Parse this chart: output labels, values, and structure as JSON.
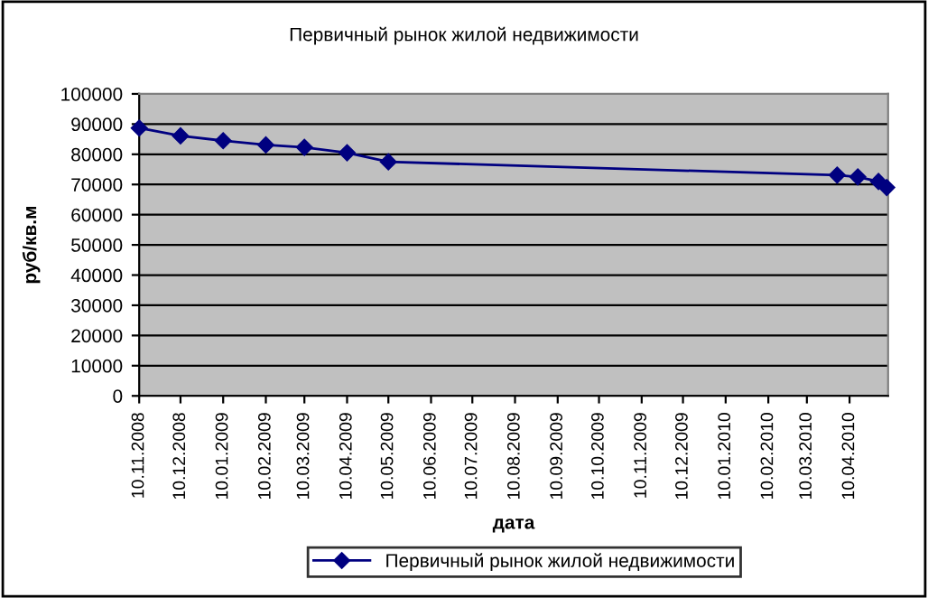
{
  "chart_data": {
    "type": "line",
    "title": "Первичный рынок жилой недвижимости",
    "xlabel": "дата",
    "ylabel": "руб/кв.м",
    "x": [
      "2008-11-10",
      "2008-12-10",
      "2009-01-10",
      "2009-02-10",
      "2009-03-10",
      "2009-04-10",
      "2009-05-10",
      "2010-04-01",
      "2010-04-16",
      "2010-05-01",
      "2010-05-07"
    ],
    "series": [
      {
        "name": "Первичный рынок жилой недвижимости",
        "color": "#000080",
        "values": [
          88700,
          86100,
          84500,
          83100,
          82300,
          80500,
          77500,
          73100,
          72500,
          71000,
          69000
        ]
      }
    ],
    "xlim": [
      "2008-11-10",
      "2010-05-08"
    ],
    "xticks": [
      {
        "value": "2008-11-10",
        "label": "10.11.2008"
      },
      {
        "value": "2008-12-10",
        "label": "10.12.2008"
      },
      {
        "value": "2009-01-10",
        "label": "10.01.2009"
      },
      {
        "value": "2009-02-10",
        "label": "10.02.2009"
      },
      {
        "value": "2009-03-10",
        "label": "10.03.2009"
      },
      {
        "value": "2009-04-10",
        "label": "10.04.2009"
      },
      {
        "value": "2009-05-10",
        "label": "10.05.2009"
      },
      {
        "value": "2009-06-10",
        "label": "10.06.2009"
      },
      {
        "value": "2009-07-10",
        "label": "10.07.2009"
      },
      {
        "value": "2009-08-10",
        "label": "10.08.2009"
      },
      {
        "value": "2009-09-10",
        "label": "10.09.2009"
      },
      {
        "value": "2009-10-10",
        "label": "10.10.2009"
      },
      {
        "value": "2009-11-10",
        "label": "10.11.2009"
      },
      {
        "value": "2009-12-10",
        "label": "10.12.2009"
      },
      {
        "value": "2010-01-10",
        "label": "10.01.2010"
      },
      {
        "value": "2010-02-10",
        "label": "10.02.2010"
      },
      {
        "value": "2010-03-10",
        "label": "10.03.2010"
      },
      {
        "value": "2010-04-10",
        "label": "10.04.2010"
      }
    ],
    "ylim": [
      0,
      100000
    ],
    "yticks": [
      0,
      10000,
      20000,
      30000,
      40000,
      50000,
      60000,
      70000,
      80000,
      90000,
      100000
    ],
    "grid": "y",
    "legend": "bottom",
    "marker": "diamond",
    "line_style": "solid"
  }
}
